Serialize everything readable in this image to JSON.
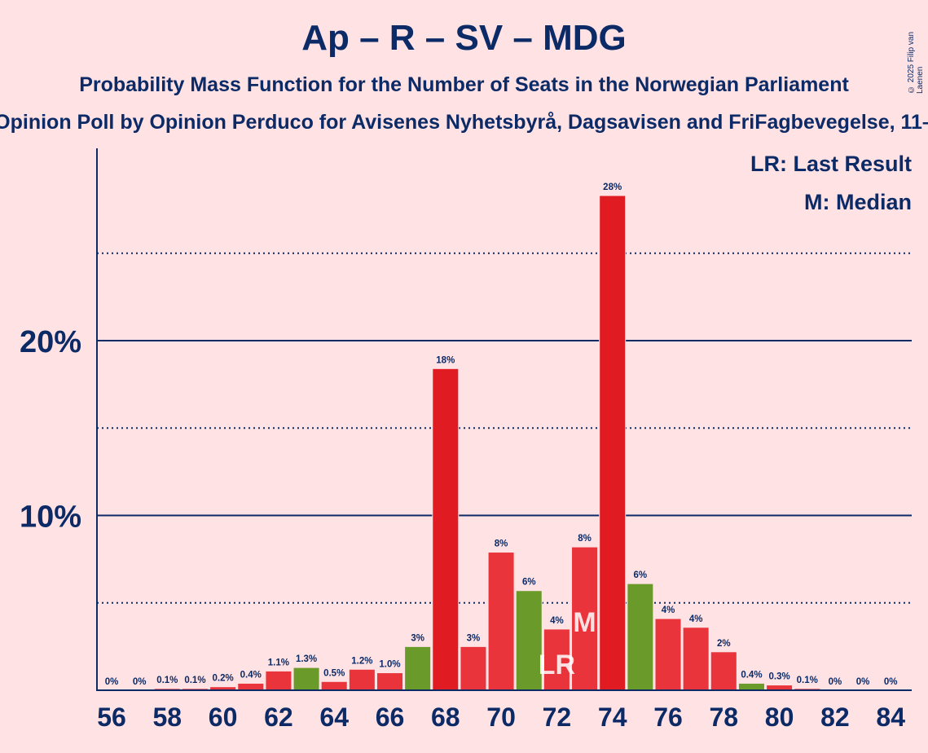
{
  "header": {
    "title": "Ap – R – SV – MDG",
    "subtitle": "Probability Mass Function for the Number of Seats in the Norwegian Parliament",
    "source_line": "Opinion Poll by Opinion Perduco for Avisenes Nyhetsbyrå, Dagsavisen and FriFagbevegelse, 11–",
    "copyright": "© 2025 Filip van Laenen"
  },
  "legend": {
    "last_result": "LR: Last Result",
    "median": "M: Median"
  },
  "colors": {
    "background": "#ffe2e4",
    "text": "#0b2a66",
    "red": "#e01b22",
    "red_light": "#e8343a",
    "green": "#6a9b2a"
  },
  "chart_data": {
    "type": "bar",
    "xlabel": "",
    "ylabel": "",
    "ylim": [
      0,
      31
    ],
    "y_ticks": [
      {
        "value": 10,
        "label": "10%"
      },
      {
        "value": 20,
        "label": "20%"
      }
    ],
    "y_minor_gridlines": [
      5,
      15,
      25
    ],
    "x_tick_labels": [
      "56",
      "58",
      "60",
      "62",
      "64",
      "66",
      "68",
      "70",
      "72",
      "74",
      "76",
      "78",
      "80",
      "82",
      "84"
    ],
    "seats": [
      56,
      57,
      58,
      59,
      60,
      61,
      62,
      63,
      64,
      65,
      66,
      67,
      68,
      69,
      70,
      71,
      72,
      73,
      74,
      75,
      76,
      77,
      78,
      79,
      80,
      81,
      82,
      83,
      84
    ],
    "values": [
      0,
      0,
      0.1,
      0.1,
      0.2,
      0.4,
      1.1,
      1.3,
      0.5,
      1.2,
      1.0,
      2.5,
      18.4,
      2.5,
      7.9,
      5.7,
      3.5,
      8.2,
      28.3,
      6.1,
      4.1,
      3.6,
      2.2,
      0.4,
      0.3,
      0.1,
      0,
      0,
      0
    ],
    "labels": [
      "0%",
      "0%",
      "0.1%",
      "0.1%",
      "0.2%",
      "0.4%",
      "1.1%",
      "1.3%",
      "0.5%",
      "1.2%",
      "1.0%",
      "3%",
      "18%",
      "3%",
      "8%",
      "6%",
      "4%",
      "8%",
      "28%",
      "6%",
      "4%",
      "4%",
      "2%",
      "0.4%",
      "0.3%",
      "0.1%",
      "0%",
      "0%",
      "0%"
    ],
    "bar_colors": [
      "red",
      "red",
      "red",
      "red",
      "red",
      "red",
      "red",
      "green",
      "red",
      "red",
      "red",
      "green",
      "red",
      "red",
      "red",
      "green",
      "red",
      "red",
      "red",
      "green",
      "red",
      "red",
      "red",
      "green",
      "red",
      "red",
      "red",
      "red",
      "red"
    ],
    "last_result_seat": 72,
    "last_result_marker": "LR",
    "median_seat": 73,
    "median_marker": "M"
  }
}
